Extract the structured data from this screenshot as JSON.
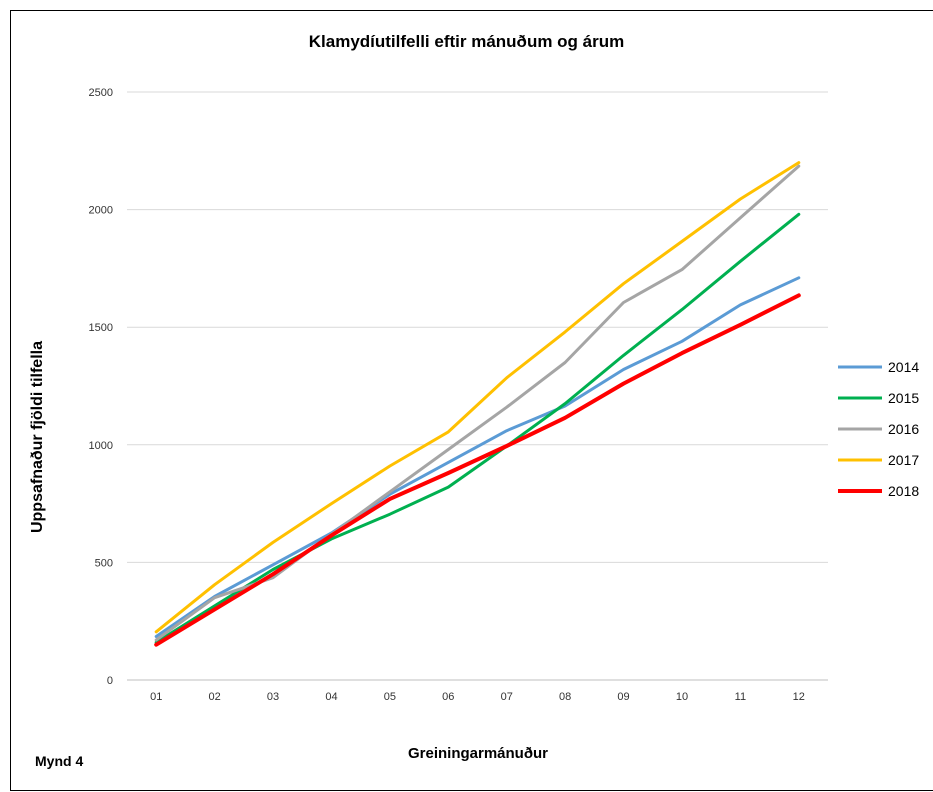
{
  "page": {
    "figure_label": "Mynd 4"
  },
  "chart_data": {
    "type": "line",
    "title": "Klamydíutilfelli  eftir mánuðum  og árum",
    "xlabel": "Greiningarmánuður",
    "ylabel": "Uppsafnaður fjöldi tilfella",
    "categories": [
      "01",
      "02",
      "03",
      "04",
      "05",
      "06",
      "07",
      "08",
      "09",
      "10",
      "11",
      "12"
    ],
    "ylim": [
      0,
      2500
    ],
    "yticks": [
      0,
      500,
      1000,
      1500,
      2000,
      2500
    ],
    "grid": true,
    "legend_position": "right",
    "series": [
      {
        "name": "2014",
        "color": "#5b9bd5",
        "width": 3,
        "values": [
          185,
          355,
          490,
          625,
          790,
          925,
          1060,
          1165,
          1320,
          1440,
          1595,
          1710
        ]
      },
      {
        "name": "2015",
        "color": "#00b050",
        "width": 3,
        "values": [
          160,
          315,
          470,
          600,
          705,
          820,
          995,
          1175,
          1380,
          1575,
          1780,
          1980
        ]
      },
      {
        "name": "2016",
        "color": "#a5a5a5",
        "width": 3,
        "values": [
          170,
          350,
          435,
          620,
          800,
          980,
          1160,
          1350,
          1605,
          1745,
          1965,
          2185
        ]
      },
      {
        "name": "2017",
        "color": "#ffc000",
        "width": 3,
        "values": [
          205,
          405,
          585,
          750,
          910,
          1055,
          1285,
          1480,
          1685,
          1865,
          2045,
          2200
        ]
      },
      {
        "name": "2018",
        "color": "#ff0000",
        "width": 4,
        "values": [
          150,
          300,
          450,
          615,
          770,
          880,
          995,
          1115,
          1260,
          1390,
          1510,
          1635
        ]
      }
    ]
  }
}
